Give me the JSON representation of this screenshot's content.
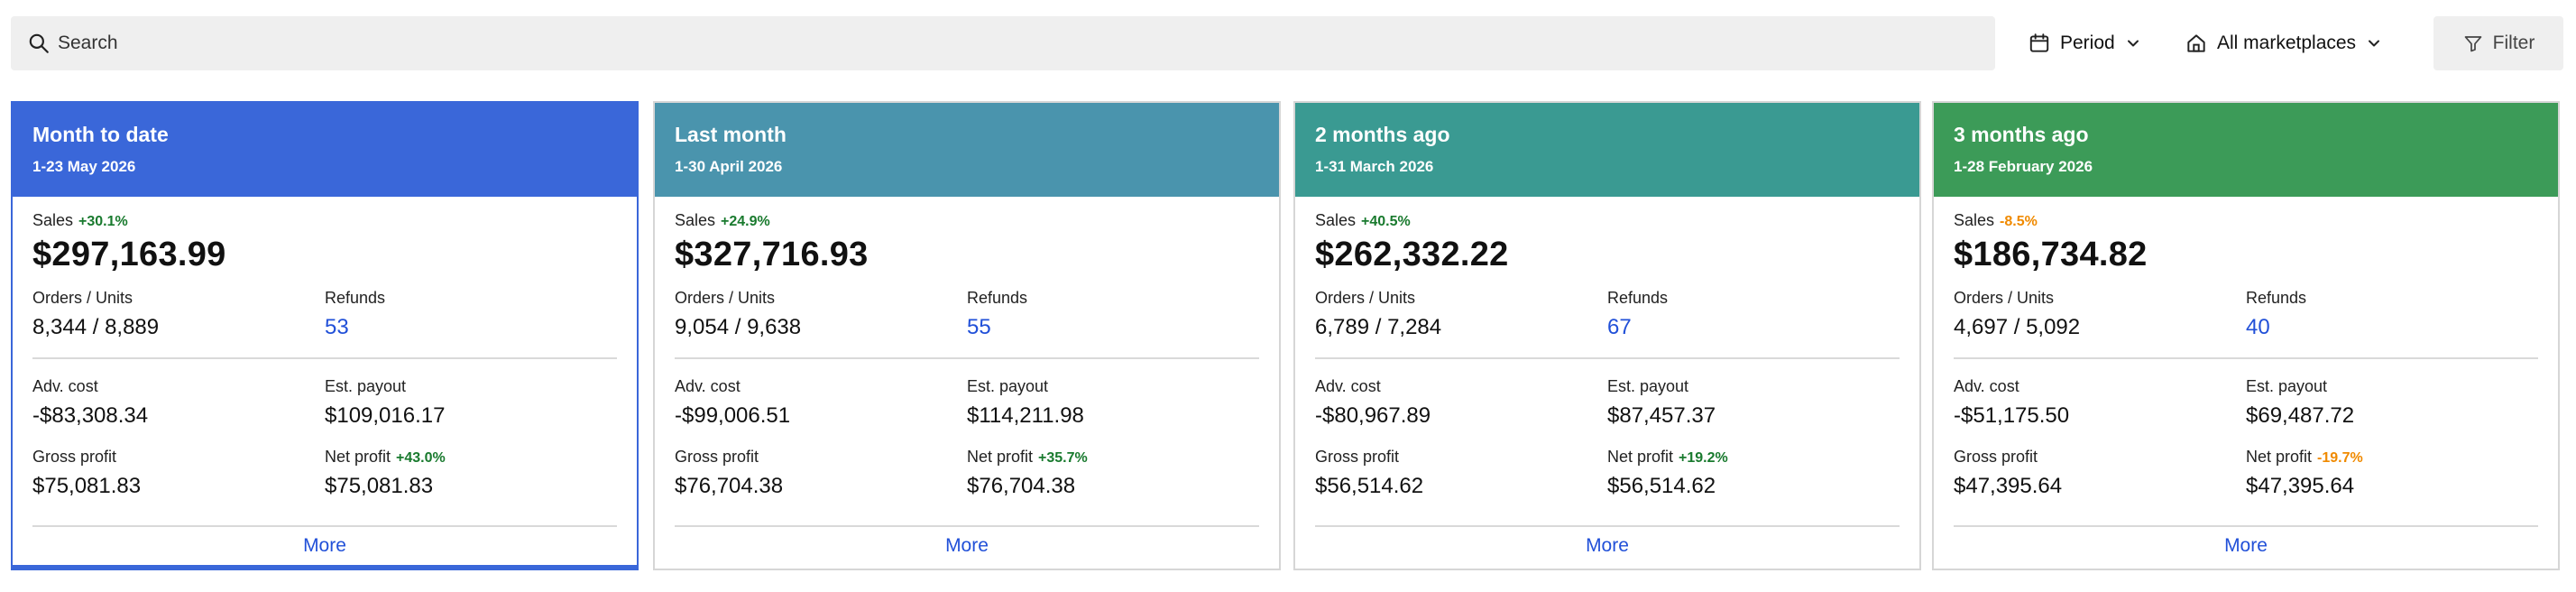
{
  "search": {
    "placeholder": "Search"
  },
  "toolbar": {
    "period_label": "Period",
    "marketplace_label": "All marketplaces",
    "filter_label": "Filter"
  },
  "labels": {
    "sales": "Sales",
    "orders_units": "Orders / Units",
    "refunds": "Refunds",
    "adv_cost": "Adv. cost",
    "est_payout": "Est. payout",
    "gross_profit": "Gross profit",
    "net_profit": "Net profit",
    "more": "More"
  },
  "colors": {
    "card0": "#3a67d9",
    "card1": "#4a94ad",
    "card2": "#3a9a92",
    "card3": "#3c9b58",
    "positive": "#197a2e",
    "negative": "#f08a00",
    "link": "#2150d8"
  },
  "cards": [
    {
      "title": "Month to date",
      "range": "1-23 May 2026",
      "sales_change": "+30.1%",
      "sales": "$297,163.99",
      "orders_units": "8,344 / 8,889",
      "refunds": "53",
      "adv_cost": "-$83,308.34",
      "est_payout": "$109,016.17",
      "gross_profit": "$75,081.83",
      "net_profit_change": "+43.0%",
      "net_profit": "$75,081.83"
    },
    {
      "title": "Last month",
      "range": "1-30 April 2026",
      "sales_change": "+24.9%",
      "sales": "$327,716.93",
      "orders_units": "9,054 / 9,638",
      "refunds": "55",
      "adv_cost": "-$99,006.51",
      "est_payout": "$114,211.98",
      "gross_profit": "$76,704.38",
      "net_profit_change": "+35.7%",
      "net_profit": "$76,704.38"
    },
    {
      "title": "2 months ago",
      "range": "1-31 March 2026",
      "sales_change": "+40.5%",
      "sales": "$262,332.22",
      "orders_units": "6,789 / 7,284",
      "refunds": "67",
      "adv_cost": "-$80,967.89",
      "est_payout": "$87,457.37",
      "gross_profit": "$56,514.62",
      "net_profit_change": "+19.2%",
      "net_profit": "$56,514.62"
    },
    {
      "title": "3 months ago",
      "range": "1-28 February 2026",
      "sales_change": "-8.5%",
      "sales": "$186,734.82",
      "orders_units": "4,697 / 5,092",
      "refunds": "40",
      "adv_cost": "-$51,175.50",
      "est_payout": "$69,487.72",
      "gross_profit": "$47,395.64",
      "net_profit_change": "-19.7%",
      "net_profit": "$47,395.64"
    }
  ]
}
